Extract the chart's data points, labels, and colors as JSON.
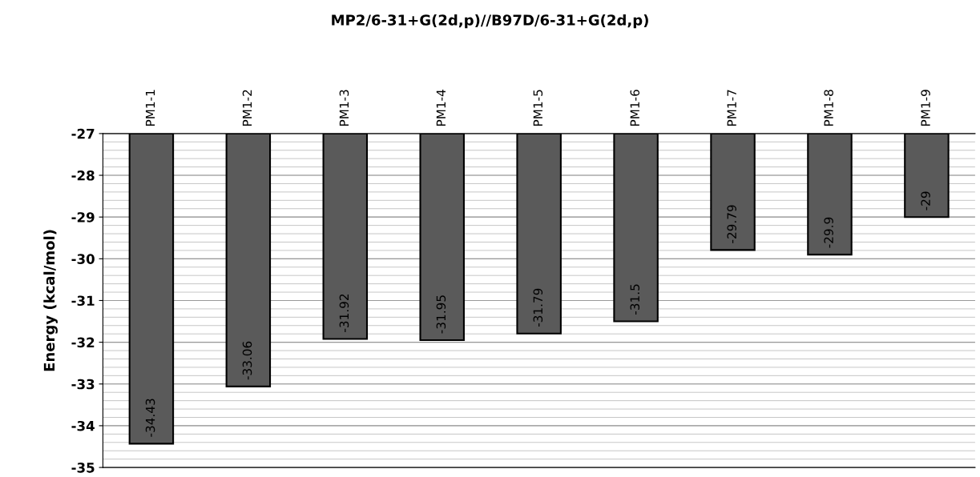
{
  "chart_data": {
    "type": "bar",
    "title": "MP2/6-31+G(2d,p)//B97D/6-31+G(2d,p)",
    "ylabel": "Energy (kcal/mol)",
    "categories": [
      "PM1-1",
      "PM1-2",
      "PM1-3",
      "PM1-4",
      "PM1-5",
      "PM1-6",
      "PM1-7",
      "PM1-8",
      "PM1-9"
    ],
    "values": [
      -34.43,
      -33.06,
      -31.92,
      -31.95,
      -31.79,
      -31.5,
      -29.79,
      -29.9,
      -29
    ],
    "color": "#5a5a5a",
    "ylim": [
      -35,
      -27
    ],
    "yticks": [
      -35,
      -34,
      -33,
      -32,
      -31,
      -30,
      -29,
      -28,
      -27
    ],
    "grid": "y",
    "data_labels": true
  }
}
